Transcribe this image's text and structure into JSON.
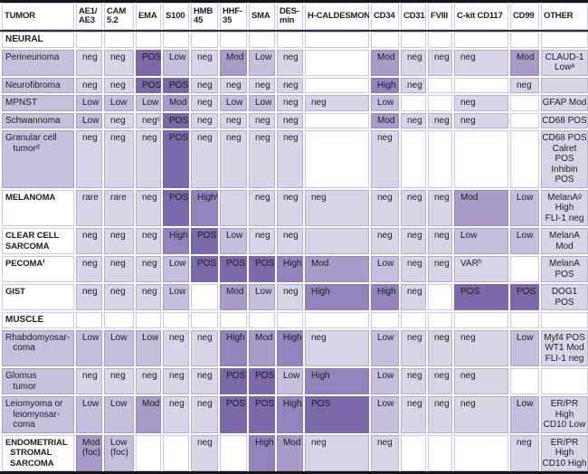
{
  "table": {
    "colors": {
      "pos": "#7a68a8",
      "high": "#9184bd",
      "mod": "#a79cc8",
      "low": "#c5bedd",
      "neg": "#d9d5e8",
      "lav": "#d9d5e8",
      "white": "#ffffff",
      "label": "#c6c0dc",
      "frame": "#161616"
    },
    "columns": [
      {
        "key": "tumor",
        "label": "TUMOR"
      },
      {
        "key": "ae1ae3",
        "label": "AE1/\nAE3"
      },
      {
        "key": "cam52",
        "label": "CAM\n5.2"
      },
      {
        "key": "ema",
        "label": "EMA"
      },
      {
        "key": "s100",
        "label": "S100"
      },
      {
        "key": "hmb45",
        "label": "HMB\n45"
      },
      {
        "key": "hhf35",
        "label": "HHF-\n35"
      },
      {
        "key": "sma",
        "label": "SMA"
      },
      {
        "key": "desmin",
        "label": "DES-\nmin"
      },
      {
        "key": "hcaldesmon",
        "label": "H-CALDESMON"
      },
      {
        "key": "cd34",
        "label": "CD34"
      },
      {
        "key": "cd31",
        "label": "CD31"
      },
      {
        "key": "fviii",
        "label": "FVIII"
      },
      {
        "key": "ckitcd117",
        "label": "C-kit CD117"
      },
      {
        "key": "cd99",
        "label": "CD99"
      },
      {
        "key": "other",
        "label": "OTHER"
      }
    ],
    "rows": [
      {
        "type": "section",
        "label": "NEURAL"
      },
      {
        "type": "data",
        "label": "Perineurioma",
        "bold": false,
        "cells": [
          {
            "v": "neg",
            "c": "neg"
          },
          {
            "v": "neg",
            "c": "neg"
          },
          {
            "v": "POS",
            "c": "pos"
          },
          {
            "v": "Low",
            "c": "low"
          },
          {
            "v": "neg",
            "c": "neg"
          },
          {
            "v": "Mod",
            "c": "mod"
          },
          {
            "v": "Low",
            "c": "low"
          },
          {
            "v": "neg",
            "c": "neg"
          },
          {
            "v": "",
            "c": "white"
          },
          {
            "v": "Mod",
            "c": "mod"
          },
          {
            "v": "neg",
            "c": "neg"
          },
          {
            "v": "neg",
            "c": "neg"
          },
          {
            "v": "neg",
            "c": "neg"
          },
          {
            "v": "Mod",
            "c": "mod"
          },
          {
            "v": "CLAUD-1 Lowᵃ",
            "c": "neg"
          }
        ]
      },
      {
        "type": "data",
        "label": "Neurofibroma",
        "bold": false,
        "cells": [
          {
            "v": "neg",
            "c": "neg"
          },
          {
            "v": "neg",
            "c": "neg"
          },
          {
            "v": "POSᵇ",
            "c": "pos"
          },
          {
            "v": "POS",
            "c": "pos"
          },
          {
            "v": "neg",
            "c": "neg"
          },
          {
            "v": "neg",
            "c": "neg"
          },
          {
            "v": "neg",
            "c": "neg"
          },
          {
            "v": "neg",
            "c": "neg"
          },
          {
            "v": "",
            "c": "white"
          },
          {
            "v": "High",
            "c": "high"
          },
          {
            "v": "neg",
            "c": "neg"
          },
          {
            "v": "",
            "c": "white"
          },
          {
            "v": "",
            "c": "white"
          },
          {
            "v": "neg",
            "c": "neg"
          },
          {
            "v": "",
            "c": "lav"
          }
        ]
      },
      {
        "type": "data",
        "label": "MPNST",
        "bold": false,
        "cells": [
          {
            "v": "Low",
            "c": "low"
          },
          {
            "v": "Low",
            "c": "low"
          },
          {
            "v": "Low",
            "c": "low"
          },
          {
            "v": "Mod",
            "c": "mod"
          },
          {
            "v": "neg",
            "c": "neg"
          },
          {
            "v": "Low",
            "c": "low"
          },
          {
            "v": "Low",
            "c": "low"
          },
          {
            "v": "neg",
            "c": "neg"
          },
          {
            "v": "neg",
            "c": "neg"
          },
          {
            "v": "Low",
            "c": "low"
          },
          {
            "v": "",
            "c": "white"
          },
          {
            "v": "",
            "c": "white"
          },
          {
            "v": "neg",
            "c": "neg"
          },
          {
            "v": "",
            "c": "white"
          },
          {
            "v": "GFAP Mod",
            "c": "neg"
          }
        ]
      },
      {
        "type": "data",
        "label": "Schwannoma",
        "bold": false,
        "cells": [
          {
            "v": "Low",
            "c": "low"
          },
          {
            "v": "neg",
            "c": "neg"
          },
          {
            "v": "negᶜ",
            "c": "neg"
          },
          {
            "v": "POS",
            "c": "pos"
          },
          {
            "v": "neg",
            "c": "neg"
          },
          {
            "v": "neg",
            "c": "neg"
          },
          {
            "v": "neg",
            "c": "neg"
          },
          {
            "v": "neg",
            "c": "neg"
          },
          {
            "v": "",
            "c": "white"
          },
          {
            "v": "Mod",
            "c": "mod"
          },
          {
            "v": "neg",
            "c": "neg"
          },
          {
            "v": "neg",
            "c": "neg"
          },
          {
            "v": "neg",
            "c": "neg"
          },
          {
            "v": "",
            "c": "white"
          },
          {
            "v": "CD68 POS",
            "c": "neg"
          }
        ]
      },
      {
        "type": "data",
        "label": "Granular cell\n   tumorᵈ",
        "bold": false,
        "cells": [
          {
            "v": "neg",
            "c": "neg"
          },
          {
            "v": "neg",
            "c": "neg"
          },
          {
            "v": "neg",
            "c": "neg"
          },
          {
            "v": "POS",
            "c": "pos"
          },
          {
            "v": "neg",
            "c": "neg"
          },
          {
            "v": "neg",
            "c": "neg"
          },
          {
            "v": "neg",
            "c": "neg"
          },
          {
            "v": "neg",
            "c": "neg"
          },
          {
            "v": "",
            "c": "white"
          },
          {
            "v": "neg",
            "c": "neg"
          },
          {
            "v": "",
            "c": "white"
          },
          {
            "v": "",
            "c": "white"
          },
          {
            "v": "",
            "c": "white"
          },
          {
            "v": "",
            "c": "white"
          },
          {
            "v": "CD68 POS\nCalret POS\nInhibin\nPOS",
            "c": "neg"
          }
        ]
      },
      {
        "type": "data",
        "label": "MELANOMA",
        "bold": true,
        "cells": [
          {
            "v": "rare",
            "c": "neg"
          },
          {
            "v": "rare",
            "c": "neg"
          },
          {
            "v": "neg",
            "c": "neg"
          },
          {
            "v": "POS",
            "c": "pos"
          },
          {
            "v": "Highᵉ",
            "c": "high"
          },
          {
            "v": "",
            "c": "lav"
          },
          {
            "v": "neg",
            "c": "neg"
          },
          {
            "v": "neg",
            "c": "neg"
          },
          {
            "v": "neg",
            "c": "neg"
          },
          {
            "v": "neg",
            "c": "neg"
          },
          {
            "v": "neg",
            "c": "neg"
          },
          {
            "v": "neg",
            "c": "neg"
          },
          {
            "v": "Mod",
            "c": "mod"
          },
          {
            "v": "Low",
            "c": "low"
          },
          {
            "v": "MelanAᵍ\nHigh\nFLI-1 neg",
            "c": "neg"
          }
        ]
      },
      {
        "type": "data",
        "label": "CLEAR CELL\nSARCOMA",
        "bold": true,
        "cells": [
          {
            "v": "neg",
            "c": "neg"
          },
          {
            "v": "neg",
            "c": "neg"
          },
          {
            "v": "neg",
            "c": "neg"
          },
          {
            "v": "High",
            "c": "high"
          },
          {
            "v": "POS",
            "c": "pos"
          },
          {
            "v": "Low",
            "c": "low"
          },
          {
            "v": "neg",
            "c": "neg"
          },
          {
            "v": "neg",
            "c": "neg"
          },
          {
            "v": "",
            "c": "lav"
          },
          {
            "v": "neg",
            "c": "neg"
          },
          {
            "v": "neg",
            "c": "neg"
          },
          {
            "v": "neg",
            "c": "neg"
          },
          {
            "v": "Low",
            "c": "low"
          },
          {
            "v": "Low",
            "c": "low"
          },
          {
            "v": "MelanA\nMod",
            "c": "neg"
          }
        ]
      },
      {
        "type": "data",
        "label": "PECOMAᶠ",
        "bold": true,
        "cells": [
          {
            "v": "neg",
            "c": "neg"
          },
          {
            "v": "neg",
            "c": "neg"
          },
          {
            "v": "neg",
            "c": "neg"
          },
          {
            "v": "Low",
            "c": "low"
          },
          {
            "v": "POS",
            "c": "pos"
          },
          {
            "v": "POS",
            "c": "pos"
          },
          {
            "v": "POS",
            "c": "pos"
          },
          {
            "v": "High",
            "c": "high"
          },
          {
            "v": "Mod",
            "c": "mod"
          },
          {
            "v": "Low",
            "c": "low"
          },
          {
            "v": "neg",
            "c": "neg"
          },
          {
            "v": "neg",
            "c": "neg"
          },
          {
            "v": "VARʰ",
            "c": "neg"
          },
          {
            "v": "",
            "c": "white"
          },
          {
            "v": "MelanA\nPOS",
            "c": "neg"
          }
        ]
      },
      {
        "type": "data",
        "label": "GIST",
        "bold": true,
        "cells": [
          {
            "v": "neg",
            "c": "neg"
          },
          {
            "v": "neg",
            "c": "neg"
          },
          {
            "v": "neg",
            "c": "neg"
          },
          {
            "v": "Low",
            "c": "low"
          },
          {
            "v": "",
            "c": "white"
          },
          {
            "v": "Mod",
            "c": "mod"
          },
          {
            "v": "Low",
            "c": "low"
          },
          {
            "v": "neg",
            "c": "neg"
          },
          {
            "v": "High",
            "c": "high"
          },
          {
            "v": "High",
            "c": "high"
          },
          {
            "v": "neg",
            "c": "neg"
          },
          {
            "v": "",
            "c": "white"
          },
          {
            "v": "POS",
            "c": "pos"
          },
          {
            "v": "POS",
            "c": "pos"
          },
          {
            "v": "DOG1 POS",
            "c": "neg"
          }
        ]
      },
      {
        "type": "section",
        "label": "MUSCLE"
      },
      {
        "type": "data",
        "label": "Rhabdomyosar-\n   coma",
        "bold": false,
        "cells": [
          {
            "v": "Low",
            "c": "low"
          },
          {
            "v": "Low",
            "c": "low"
          },
          {
            "v": "Low",
            "c": "low"
          },
          {
            "v": "neg",
            "c": "neg"
          },
          {
            "v": "neg",
            "c": "neg"
          },
          {
            "v": "High",
            "c": "high"
          },
          {
            "v": "Mod",
            "c": "mod"
          },
          {
            "v": "High",
            "c": "high"
          },
          {
            "v": "neg",
            "c": "neg"
          },
          {
            "v": "Low",
            "c": "low"
          },
          {
            "v": "neg",
            "c": "neg"
          },
          {
            "v": "neg",
            "c": "neg"
          },
          {
            "v": "neg",
            "c": "neg"
          },
          {
            "v": "Low",
            "c": "low"
          },
          {
            "v": "Myf4 POS\nWT1 Mod\nFLI-1 neg",
            "c": "neg"
          }
        ]
      },
      {
        "type": "data",
        "label": "Glomus\n   tumor",
        "bold": false,
        "cells": [
          {
            "v": "neg",
            "c": "neg"
          },
          {
            "v": "neg",
            "c": "neg"
          },
          {
            "v": "neg",
            "c": "neg"
          },
          {
            "v": "neg",
            "c": "neg"
          },
          {
            "v": "neg",
            "c": "neg"
          },
          {
            "v": "POS",
            "c": "pos"
          },
          {
            "v": "POS",
            "c": "pos"
          },
          {
            "v": "Low",
            "c": "low"
          },
          {
            "v": "High",
            "c": "high"
          },
          {
            "v": "Low",
            "c": "low"
          },
          {
            "v": "neg",
            "c": "neg"
          },
          {
            "v": "neg",
            "c": "neg"
          },
          {
            "v": "neg",
            "c": "neg"
          },
          {
            "v": "",
            "c": "white"
          },
          {
            "v": "",
            "c": "white"
          }
        ]
      },
      {
        "type": "data",
        "label": "Leiomyoma or\n   leiomyosar-\n   coma",
        "bold": false,
        "cells": [
          {
            "v": "Low",
            "c": "low"
          },
          {
            "v": "Low",
            "c": "low"
          },
          {
            "v": "Mod",
            "c": "mod"
          },
          {
            "v": "neg",
            "c": "neg"
          },
          {
            "v": "neg",
            "c": "neg"
          },
          {
            "v": "POS",
            "c": "pos"
          },
          {
            "v": "POS",
            "c": "pos"
          },
          {
            "v": "High",
            "c": "high"
          },
          {
            "v": "POS",
            "c": "pos"
          },
          {
            "v": "Low",
            "c": "low"
          },
          {
            "v": "neg",
            "c": "neg"
          },
          {
            "v": "neg",
            "c": "neg"
          },
          {
            "v": "neg",
            "c": "neg"
          },
          {
            "v": "Low",
            "c": "low"
          },
          {
            "v": "ER/PR\nHigh\nCD10 Low",
            "c": "neg"
          }
        ]
      },
      {
        "type": "data",
        "label": "ENDOMETRIAL\n  STROMAL\n  SARCOMA",
        "bold": true,
        "cells": [
          {
            "v": "Mod\n(foc)",
            "c": "mod"
          },
          {
            "v": "Low\n(foc)",
            "c": "low"
          },
          {
            "v": "",
            "c": "white"
          },
          {
            "v": "",
            "c": "white"
          },
          {
            "v": "neg",
            "c": "neg"
          },
          {
            "v": "",
            "c": "white"
          },
          {
            "v": "High",
            "c": "high"
          },
          {
            "v": "Mod",
            "c": "mod"
          },
          {
            "v": "neg",
            "c": "neg"
          },
          {
            "v": "neg",
            "c": "neg"
          },
          {
            "v": "",
            "c": "white"
          },
          {
            "v": "",
            "c": "white"
          },
          {
            "v": "",
            "c": "white"
          },
          {
            "v": "neg",
            "c": "neg"
          },
          {
            "v": "ER/PR\nHigh\nCD10 High",
            "c": "neg"
          }
        ]
      }
    ]
  }
}
